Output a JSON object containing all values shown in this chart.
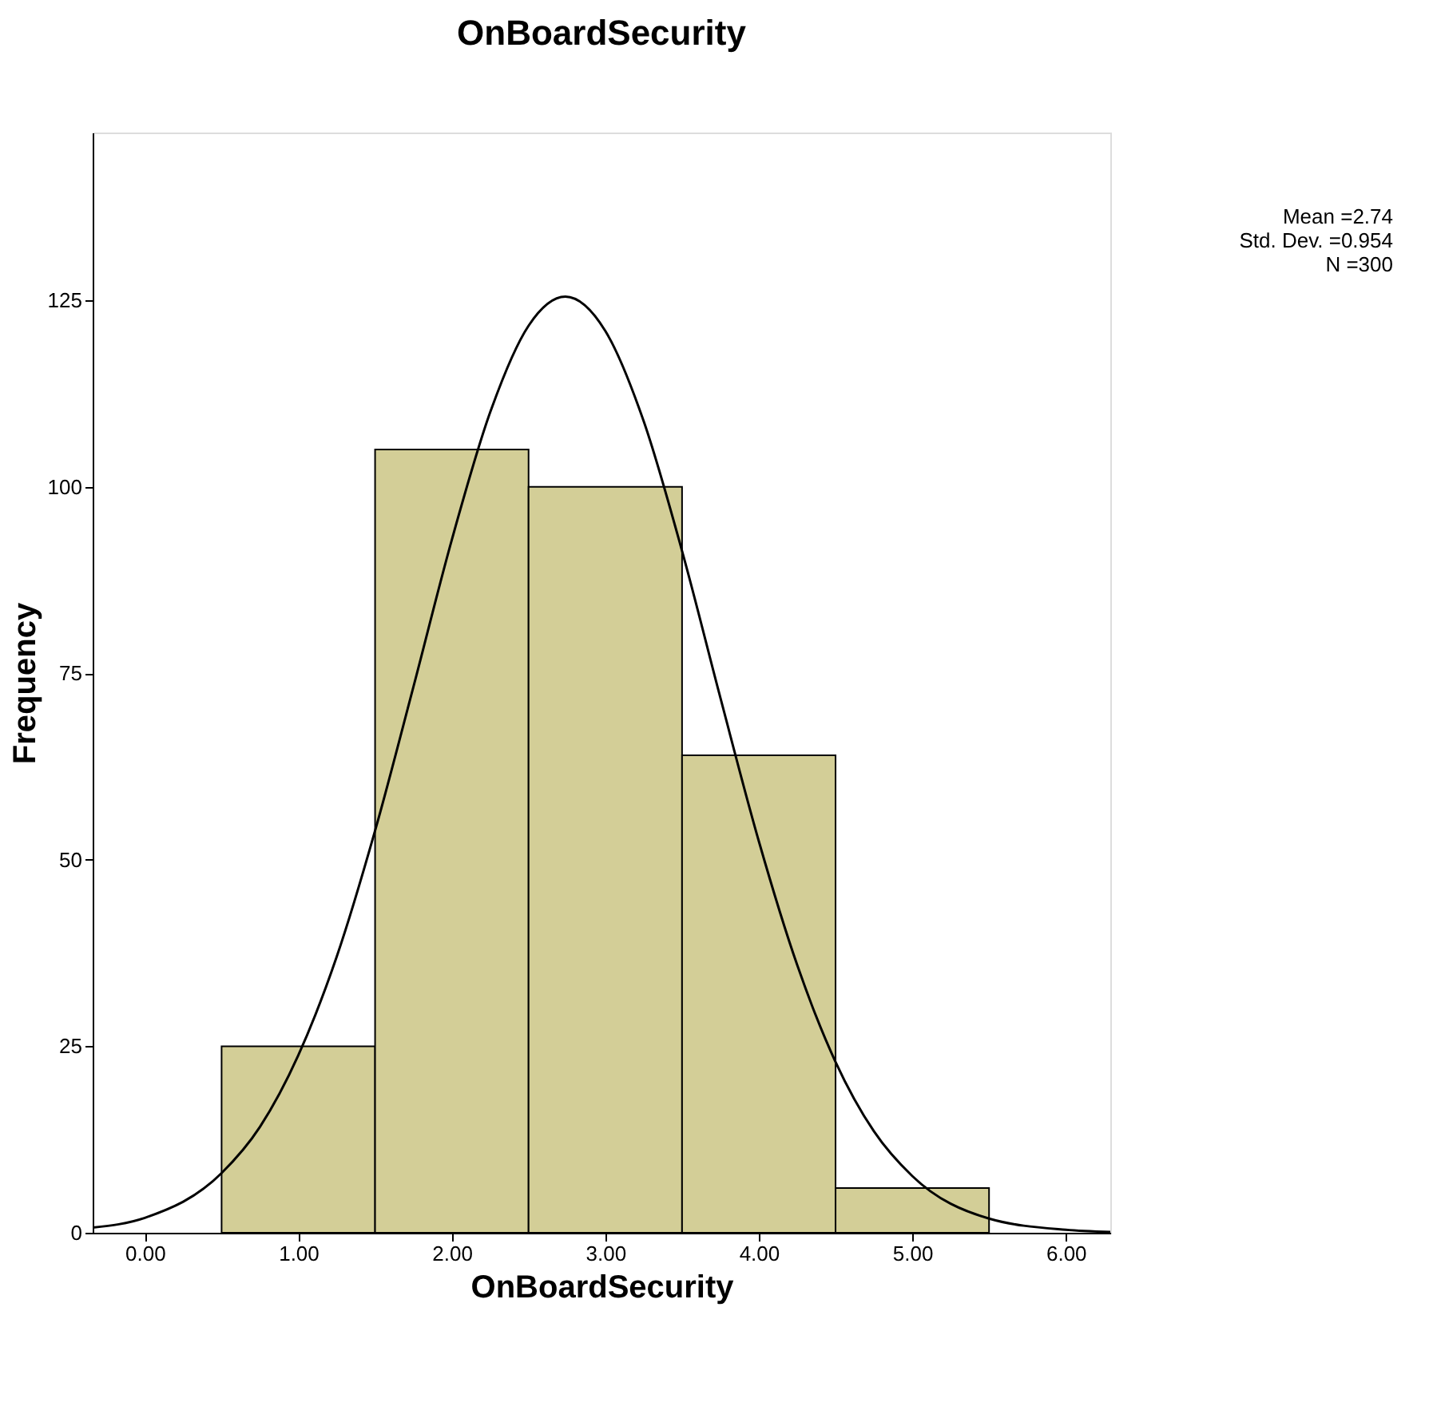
{
  "chart_data": {
    "type": "histogram",
    "title": "OnBoardSecurity",
    "xlabel": "OnBoardSecurity",
    "ylabel": "Frequency",
    "bins": [
      0.5,
      1.5,
      2.5,
      3.5,
      4.5,
      5.5
    ],
    "values": [
      25,
      105,
      100,
      64,
      6
    ],
    "color": "#d3ce97",
    "series": [
      {
        "type": "line",
        "color": "#000000",
        "x": [
          -0.34,
          0,
          0.5,
          0.75,
          1,
          1.25,
          1.5,
          1.75,
          2,
          2.25,
          2.5,
          2.74,
          3,
          3.25,
          3.5,
          3.75,
          4,
          4.25,
          4.5,
          4.75,
          5,
          5.5,
          6,
          6.29
        ],
        "values": [
          0.7,
          2.0,
          8.0,
          14.2,
          23.8,
          37.0,
          53.9,
          73.2,
          92.9,
          110.0,
          121.6,
          125.5,
          120.9,
          108.8,
          91.4,
          71.7,
          52.5,
          35.9,
          22.9,
          13.6,
          7.6,
          1.9,
          0.4,
          0.1
        ]
      }
    ],
    "xlim": [
      -0.34,
      6.29
    ],
    "xticks": [
      {
        "value": 0,
        "label": "0.00"
      },
      {
        "value": 1,
        "label": "1.00"
      },
      {
        "value": 2,
        "label": "2.00"
      },
      {
        "value": 3,
        "label": "3.00"
      },
      {
        "value": 4,
        "label": "4.00"
      },
      {
        "value": 5,
        "label": "5.00"
      },
      {
        "value": 6,
        "label": "6.00"
      }
    ],
    "ylim": [
      0,
      147.5
    ],
    "yticks": [
      0,
      25,
      50,
      75,
      100,
      125
    ],
    "grid": false,
    "annotations": [
      "Mean =2.74",
      "Std. Dev. =0.954",
      "N =300"
    ]
  }
}
